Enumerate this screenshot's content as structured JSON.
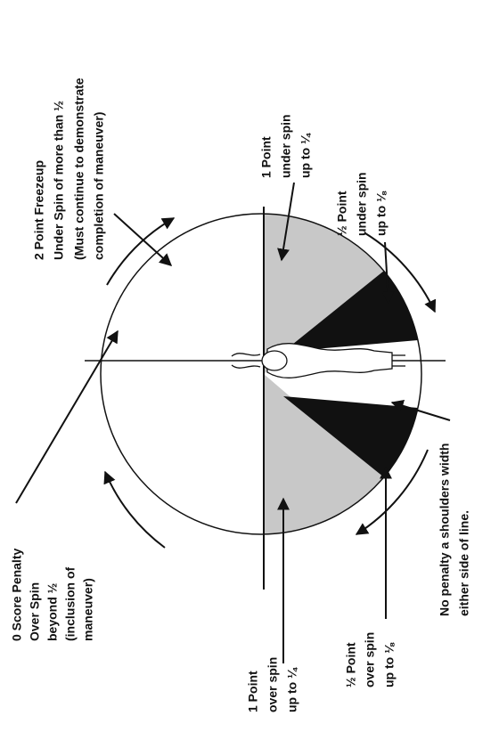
{
  "labels": {
    "zero_score": [
      "0 Score Penalty",
      "Over Spin",
      "beyond ½",
      "(inclusion of",
      "maneuver)"
    ],
    "freezeup": [
      "2 Point Freezeup",
      "Under Spin of more than ½",
      "(Must continue to demonstrate",
      "completion of maneuver)"
    ],
    "one_under": [
      "1 Point",
      "under spin",
      "up to ¼"
    ],
    "half_under": [
      "½ Point",
      "under spin",
      "up to ⅛"
    ],
    "no_penalty": [
      "No penalty a shoulders width",
      "either side of line."
    ],
    "one_over": [
      "1 Point",
      "over spin",
      "up to ¼"
    ],
    "half_over": [
      "½ Point",
      "over spin",
      "up to ⅛"
    ]
  }
}
